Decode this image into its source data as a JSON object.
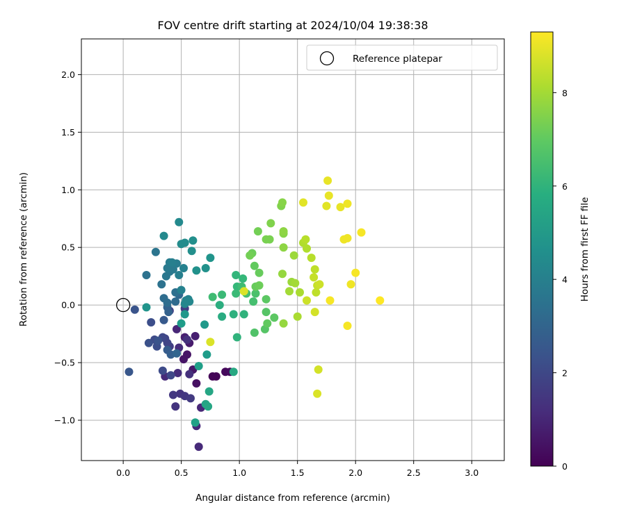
{
  "chart_data": {
    "type": "scatter",
    "title": "FOV centre drift starting at 2024/10/04 19:38:38",
    "xlabel": "Angular distance from reference (arcmin)",
    "ylabel": "Rotation from reference (arcmin)",
    "xlim": [
      -0.36,
      3.28
    ],
    "ylim": [
      -1.35,
      2.31
    ],
    "xticks": [
      "0.0",
      "0.5",
      "1.0",
      "1.5",
      "2.0",
      "2.5",
      "3.0"
    ],
    "yticks": [
      "−1.0",
      "−0.5",
      "0.0",
      "0.5",
      "1.0",
      "1.5",
      "2.0"
    ],
    "grid": true,
    "legend": {
      "position": "upper right",
      "entries": [
        "Reference platepar"
      ]
    },
    "reference_point": {
      "x": 0.0,
      "y": 0.0
    },
    "colorbar": {
      "label": "Hours from first FF file",
      "range": [
        0,
        9.3
      ],
      "ticks": [
        "0",
        "2",
        "4",
        "6",
        "8"
      ],
      "colormap": "viridis"
    },
    "points": [
      [
        0.8,
        -0.62,
        0.1
      ],
      [
        0.77,
        -0.62,
        0.1
      ],
      [
        0.88,
        -0.58,
        0.2
      ],
      [
        0.92,
        -0.58,
        0.25
      ],
      [
        0.63,
        -0.68,
        0.4
      ],
      [
        0.55,
        -0.43,
        0.5
      ],
      [
        0.52,
        -0.47,
        0.5
      ],
      [
        0.6,
        -0.56,
        0.6
      ],
      [
        0.57,
        -0.33,
        0.7
      ],
      [
        0.62,
        -0.27,
        0.8
      ],
      [
        0.53,
        -0.28,
        0.8
      ],
      [
        0.46,
        -0.21,
        1.0
      ],
      [
        0.67,
        -0.89,
        1.0
      ],
      [
        0.63,
        -1.05,
        1.1
      ],
      [
        0.65,
        -1.23,
        1.1
      ],
      [
        0.36,
        -0.62,
        1.1
      ],
      [
        0.47,
        -0.59,
        1.2
      ],
      [
        0.48,
        -0.37,
        1.2
      ],
      [
        0.55,
        -0.3,
        1.3
      ],
      [
        0.57,
        -0.6,
        1.3
      ],
      [
        0.49,
        -0.77,
        1.4
      ],
      [
        0.45,
        -0.88,
        1.4
      ],
      [
        0.43,
        -0.78,
        1.5
      ],
      [
        0.53,
        -0.79,
        1.5
      ],
      [
        0.58,
        -0.81,
        1.6
      ],
      [
        0.4,
        -0.36,
        1.7
      ],
      [
        0.53,
        -0.03,
        1.7
      ],
      [
        0.4,
        -0.05,
        1.8
      ],
      [
        0.36,
        -0.29,
        1.9
      ],
      [
        0.38,
        -0.33,
        1.9
      ],
      [
        0.34,
        -0.28,
        2.0
      ],
      [
        0.41,
        -0.61,
        2.0
      ],
      [
        0.34,
        -0.57,
        2.1
      ],
      [
        0.27,
        -0.3,
        2.1
      ],
      [
        0.29,
        -0.36,
        2.2
      ],
      [
        0.24,
        -0.15,
        2.2
      ],
      [
        0.22,
        -0.33,
        2.3
      ],
      [
        0.3,
        -0.31,
        2.4
      ],
      [
        0.1,
        -0.04,
        2.4
      ],
      [
        0.05,
        -0.58,
        2.5
      ],
      [
        0.35,
        -0.13,
        2.6
      ],
      [
        0.38,
        -0.39,
        2.7
      ],
      [
        0.41,
        -0.43,
        2.8
      ],
      [
        0.39,
        -0.06,
        2.9
      ],
      [
        0.38,
        -0.02,
        2.9
      ],
      [
        0.46,
        -0.42,
        3.0
      ],
      [
        0.48,
        0.09,
        3.1
      ],
      [
        0.45,
        0.03,
        3.2
      ],
      [
        0.35,
        0.06,
        3.3
      ],
      [
        0.38,
        0.02,
        3.3
      ],
      [
        0.45,
        0.11,
        3.4
      ],
      [
        0.33,
        0.18,
        3.5
      ],
      [
        0.2,
        0.26,
        3.5
      ],
      [
        0.28,
        0.46,
        3.6
      ],
      [
        0.37,
        0.25,
        3.7
      ],
      [
        0.4,
        0.29,
        3.7
      ],
      [
        0.43,
        0.31,
        3.8
      ],
      [
        0.38,
        0.32,
        3.8
      ],
      [
        0.46,
        0.36,
        3.9
      ],
      [
        0.4,
        0.37,
        3.9
      ],
      [
        0.42,
        0.37,
        4.0
      ],
      [
        0.48,
        0.26,
        4.0
      ],
      [
        0.52,
        0.32,
        4.1
      ],
      [
        0.5,
        0.13,
        4.1
      ],
      [
        0.56,
        0.05,
        4.2
      ],
      [
        0.54,
        0.04,
        4.2
      ],
      [
        0.57,
        0.03,
        4.3
      ],
      [
        0.53,
        0.01,
        4.3
      ],
      [
        0.35,
        0.6,
        4.4
      ],
      [
        0.48,
        0.72,
        4.4
      ],
      [
        0.5,
        0.53,
        4.5
      ],
      [
        0.53,
        0.54,
        4.5
      ],
      [
        0.6,
        0.56,
        4.6
      ],
      [
        0.59,
        0.47,
        4.6
      ],
      [
        0.63,
        0.3,
        4.7
      ],
      [
        0.71,
        0.32,
        4.7
      ],
      [
        0.75,
        0.41,
        4.8
      ],
      [
        0.2,
        -0.02,
        4.8
      ],
      [
        0.53,
        -0.08,
        4.9
      ],
      [
        0.7,
        -0.17,
        5.0
      ],
      [
        0.5,
        -0.16,
        5.1
      ],
      [
        0.72,
        -0.43,
        5.1
      ],
      [
        0.65,
        -0.53,
        5.2
      ],
      [
        0.62,
        -1.02,
        5.3
      ],
      [
        0.71,
        -0.86,
        5.4
      ],
      [
        0.73,
        -0.88,
        5.5
      ],
      [
        0.74,
        -0.75,
        5.5
      ],
      [
        0.95,
        -0.58,
        5.6
      ],
      [
        0.85,
        -0.1,
        5.7
      ],
      [
        0.83,
        0.0,
        5.8
      ],
      [
        0.95,
        -0.08,
        5.9
      ],
      [
        1.04,
        -0.08,
        6.0
      ],
      [
        0.98,
        -0.28,
        6.0
      ],
      [
        0.97,
        0.26,
        6.1
      ],
      [
        1.03,
        0.23,
        6.2
      ],
      [
        0.98,
        0.16,
        6.2
      ],
      [
        0.97,
        0.1,
        6.3
      ],
      [
        0.85,
        0.09,
        6.3
      ],
      [
        0.77,
        0.07,
        6.4
      ],
      [
        1.02,
        0.16,
        6.4
      ],
      [
        1.06,
        0.1,
        6.5
      ],
      [
        1.12,
        0.03,
        6.5
      ],
      [
        1.14,
        0.1,
        6.6
      ],
      [
        1.13,
        -0.24,
        6.7
      ],
      [
        1.22,
        -0.21,
        6.8
      ],
      [
        1.23,
        -0.06,
        6.8
      ],
      [
        1.23,
        0.05,
        6.9
      ],
      [
        1.3,
        -0.11,
        6.9
      ],
      [
        1.24,
        -0.16,
        7.0
      ],
      [
        1.13,
        0.34,
        7.0
      ],
      [
        1.17,
        0.28,
        7.1
      ],
      [
        1.14,
        0.16,
        7.1
      ],
      [
        1.17,
        0.17,
        7.2
      ],
      [
        1.11,
        0.45,
        7.2
      ],
      [
        1.09,
        0.43,
        7.3
      ],
      [
        1.16,
        0.64,
        7.3
      ],
      [
        1.23,
        0.57,
        7.4
      ],
      [
        1.26,
        0.57,
        7.4
      ],
      [
        1.27,
        0.71,
        7.5
      ],
      [
        1.36,
        0.86,
        7.5
      ],
      [
        1.37,
        0.89,
        7.6
      ],
      [
        1.38,
        0.62,
        7.6
      ],
      [
        1.38,
        0.64,
        7.7
      ],
      [
        1.38,
        0.5,
        7.7
      ],
      [
        1.37,
        0.27,
        7.8
      ],
      [
        1.38,
        -0.16,
        7.8
      ],
      [
        1.47,
        0.43,
        7.9
      ],
      [
        1.45,
        0.2,
        7.9
      ],
      [
        1.48,
        0.19,
        8.0
      ],
      [
        1.43,
        0.12,
        8.0
      ],
      [
        1.5,
        -0.1,
        8.1
      ],
      [
        1.52,
        0.11,
        8.1
      ],
      [
        1.55,
        0.54,
        8.2
      ],
      [
        1.58,
        0.49,
        8.2
      ],
      [
        1.57,
        0.57,
        8.3
      ],
      [
        1.62,
        0.41,
        8.3
      ],
      [
        1.65,
        0.31,
        8.4
      ],
      [
        1.66,
        0.11,
        8.4
      ],
      [
        1.64,
        0.24,
        8.5
      ],
      [
        1.67,
        0.17,
        8.5
      ],
      [
        1.69,
        0.18,
        8.6
      ],
      [
        1.58,
        0.04,
        8.6
      ],
      [
        1.65,
        -0.06,
        8.7
      ],
      [
        1.68,
        -0.56,
        8.7
      ],
      [
        1.67,
        -0.77,
        8.8
      ],
      [
        1.04,
        0.12,
        8.8
      ],
      [
        0.75,
        -0.32,
        8.8
      ],
      [
        1.55,
        0.89,
        8.9
      ],
      [
        1.75,
        0.86,
        8.9
      ],
      [
        1.77,
        0.95,
        9.0
      ],
      [
        1.76,
        1.08,
        9.0
      ],
      [
        1.87,
        0.85,
        9.0
      ],
      [
        1.93,
        0.88,
        9.1
      ],
      [
        1.9,
        0.57,
        9.1
      ],
      [
        1.93,
        0.58,
        9.1
      ],
      [
        1.96,
        0.18,
        9.1
      ],
      [
        2.0,
        0.28,
        9.2
      ],
      [
        2.05,
        0.63,
        9.2
      ],
      [
        1.78,
        0.04,
        9.2
      ],
      [
        1.93,
        -0.18,
        9.2
      ],
      [
        2.21,
        0.04,
        9.3
      ]
    ]
  }
}
